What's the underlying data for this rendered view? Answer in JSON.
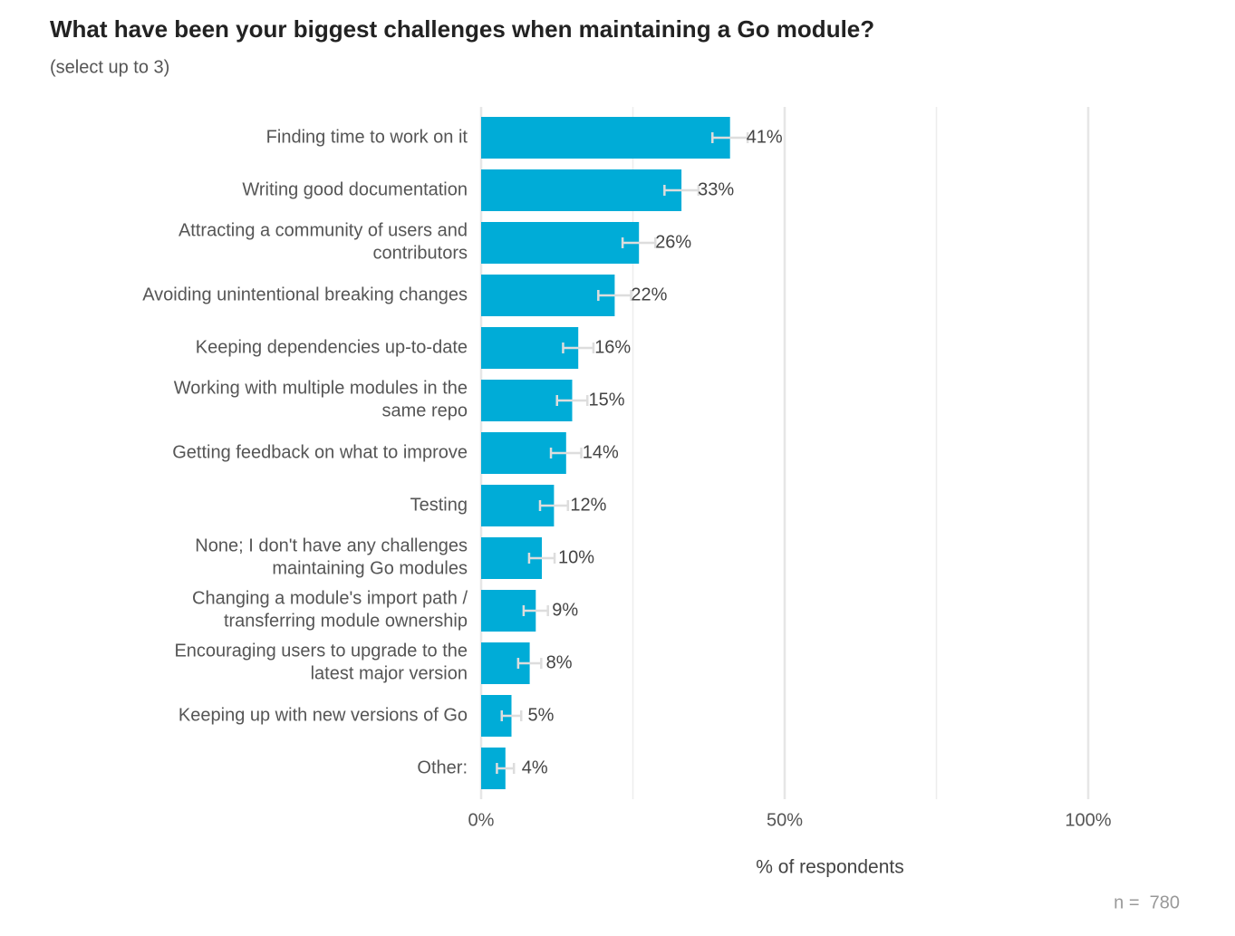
{
  "chart_data": {
    "type": "bar",
    "orientation": "horizontal",
    "title": "What have been your biggest challenges when maintaining a Go module?",
    "subtitle": "(select up to 3)",
    "categories": [
      "Finding time to work on it",
      "Writing good documentation",
      "Attracting a community of users and\ncontributors",
      "Avoiding unintentional breaking changes",
      "Keeping dependencies up-to-date",
      "Working with multiple modules in the\nsame repo",
      "Getting feedback on what to improve",
      "Testing",
      "None; I don't have any challenges\nmaintaining Go modules",
      "Changing a module's import path /\ntransferring module ownership",
      "Encouraging users to upgrade to the\nlatest major version",
      "Keeping up with new versions of Go",
      "Other:"
    ],
    "values": [
      41,
      33,
      26,
      22,
      16,
      15,
      14,
      12,
      10,
      9,
      8,
      5,
      4
    ],
    "value_labels": [
      "41%",
      "33%",
      "26%",
      "22%",
      "16%",
      "15%",
      "14%",
      "12%",
      "10%",
      "9%",
      "8%",
      "5%",
      "4%"
    ],
    "errors": [
      2.9,
      2.8,
      2.7,
      2.7,
      2.5,
      2.5,
      2.5,
      2.3,
      2.1,
      2.0,
      1.9,
      1.6,
      1.4
    ],
    "color": "#00acd7",
    "error_color": "#dddddd",
    "xlim": [
      0,
      110
    ],
    "xticks": [
      {
        "value": 0,
        "label": "0%"
      },
      {
        "value": 50,
        "label": "50%"
      },
      {
        "value": 100,
        "label": "100%"
      }
    ],
    "minor_xticks": [
      25,
      75
    ],
    "grid": true,
    "xlabel": "% of respondents",
    "note": "n =  780"
  }
}
